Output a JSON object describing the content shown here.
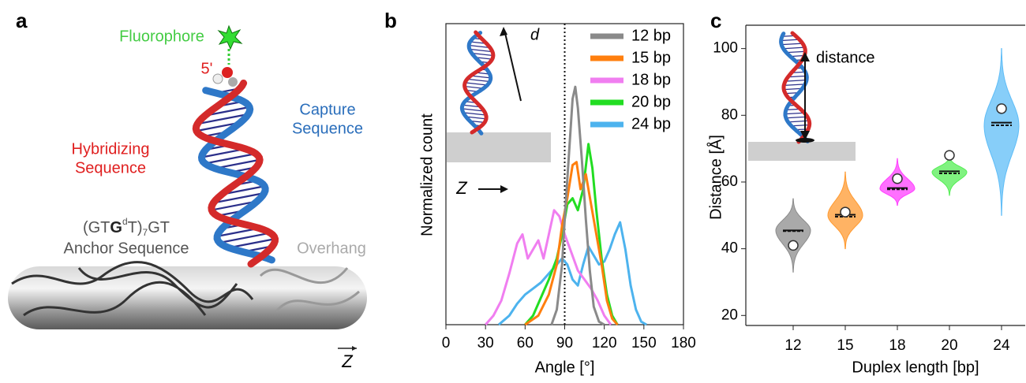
{
  "panel_labels": [
    "a",
    "b",
    "c"
  ],
  "panel_a": {
    "fluorophore": "Fluorophore",
    "five_prime": "5'",
    "hybridizing": [
      "Hybridizing",
      "Sequence"
    ],
    "capture": [
      "Capture",
      "Sequence"
    ],
    "anchor_formula": [
      "(GT",
      "G",
      "d",
      "T)",
      "7",
      "GT"
    ],
    "anchor_label": "Anchor Sequence",
    "overhang": "Overhang",
    "z_vector": "Z"
  },
  "chart_data": [
    {
      "type": "line",
      "xlabel": "Angle [°]",
      "ylabel": "Normalized count",
      "xlim": [
        0,
        180
      ],
      "xticks": [
        0,
        30,
        60,
        90,
        120,
        150,
        180
      ],
      "ylim": [
        0,
        1
      ],
      "vline": 90,
      "inset_labels": [
        "d",
        "Z"
      ],
      "series": [
        {
          "name": "12 bp",
          "color": "#8a8a8a",
          "x": [
            80,
            84,
            88,
            90,
            93,
            96,
            98,
            100,
            103,
            106,
            109,
            112,
            116,
            120
          ],
          "values": [
            0,
            0.05,
            0.2,
            0.35,
            0.55,
            0.75,
            0.79,
            0.72,
            0.55,
            0.35,
            0.18,
            0.06,
            0.01,
            0
          ]
        },
        {
          "name": "15 bp",
          "color": "#ff7f0e",
          "x": [
            60,
            70,
            78,
            84,
            88,
            92,
            96,
            99,
            102,
            106,
            110,
            114,
            118,
            122,
            126,
            130
          ],
          "values": [
            0,
            0.03,
            0.1,
            0.2,
            0.33,
            0.42,
            0.53,
            0.54,
            0.45,
            0.5,
            0.4,
            0.3,
            0.2,
            0.08,
            0.02,
            0
          ]
        },
        {
          "name": "18 bp",
          "color": "#f07ef0",
          "x": [
            30,
            36,
            42,
            48,
            54,
            58,
            62,
            66,
            70,
            74,
            78,
            82,
            86,
            90,
            95,
            100,
            105,
            110,
            115,
            120,
            125
          ],
          "values": [
            0,
            0.03,
            0.08,
            0.17,
            0.27,
            0.3,
            0.22,
            0.25,
            0.28,
            0.22,
            0.3,
            0.38,
            0.36,
            0.3,
            0.24,
            0.18,
            0.15,
            0.12,
            0.08,
            0.03,
            0
          ]
        },
        {
          "name": "20 bp",
          "color": "#22dd22",
          "x": [
            60,
            66,
            72,
            78,
            84,
            88,
            92,
            96,
            100,
            104,
            108,
            111,
            114,
            118,
            122,
            126,
            130
          ],
          "values": [
            0,
            0.03,
            0.09,
            0.15,
            0.22,
            0.3,
            0.4,
            0.42,
            0.38,
            0.45,
            0.6,
            0.52,
            0.38,
            0.22,
            0.1,
            0.03,
            0
          ]
        },
        {
          "name": "24 bp",
          "color": "#4db3ee",
          "x": [
            40,
            48,
            54,
            60,
            66,
            72,
            78,
            84,
            88,
            92,
            96,
            100,
            104,
            108,
            112,
            116,
            120,
            124,
            128,
            132,
            136,
            140,
            144,
            148,
            152
          ],
          "values": [
            0,
            0.03,
            0.07,
            0.1,
            0.12,
            0.14,
            0.17,
            0.2,
            0.22,
            0.2,
            0.15,
            0.13,
            0.2,
            0.26,
            0.23,
            0.2,
            0.21,
            0.25,
            0.3,
            0.34,
            0.25,
            0.13,
            0.05,
            0.01,
            0
          ]
        }
      ]
    },
    {
      "type": "violin",
      "xlabel": "Duplex length [bp]",
      "ylabel": "Distance [Å]",
      "inset_label": "distance",
      "categories": [
        "12",
        "15",
        "18",
        "20",
        "24"
      ],
      "ylim": [
        17,
        107
      ],
      "yticks": [
        20,
        40,
        60,
        80,
        100
      ],
      "violins": [
        {
          "color": "#8c8c8c",
          "min": 33,
          "max": 55,
          "peak": 45.5,
          "mean": 45.5,
          "median": 45.3,
          "reference": 41
        },
        {
          "color": "#ff9a30",
          "min": 40,
          "max": 63,
          "peak": 50,
          "mean": 50.2,
          "median": 49.6,
          "reference": 51
        },
        {
          "color": "#ff40ff",
          "min": 53,
          "max": 67,
          "peak": 58,
          "mean": 58.2,
          "median": 57.8,
          "reference": 61
        },
        {
          "color": "#55ee55",
          "min": 56,
          "max": 68,
          "peak": 63,
          "mean": 63.2,
          "median": 62.6,
          "reference": 68
        },
        {
          "color": "#5fbdf7",
          "min": 50,
          "max": 100,
          "peak": 77,
          "mean": 77.8,
          "median": 77,
          "reference": 82
        }
      ]
    }
  ]
}
